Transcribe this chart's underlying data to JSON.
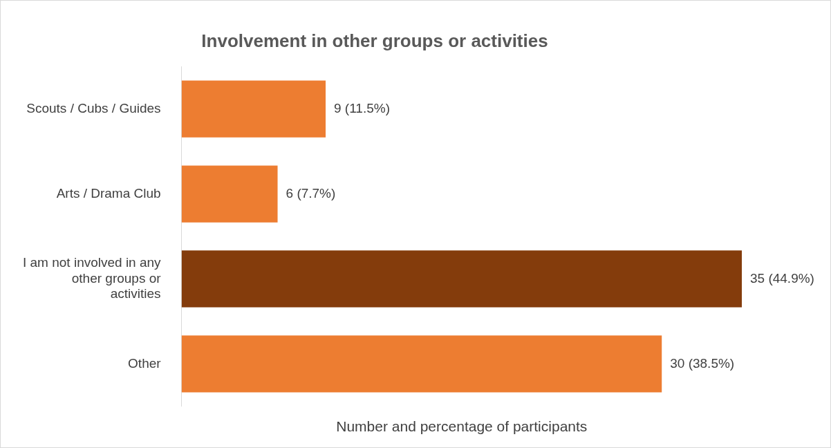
{
  "chart_data": {
    "type": "bar",
    "orientation": "horizontal",
    "title": "Involvement in other groups or activities",
    "xlabel": "Number and percentage of participants",
    "categories": [
      "Scouts / Cubs / Guides",
      "Arts / Drama Club",
      "I am not involved in any other groups or activities",
      "Other"
    ],
    "values": [
      9,
      6,
      35,
      30
    ],
    "colors": [
      "#ed7d31",
      "#ed7d31",
      "#843c0c",
      "#ed7d31"
    ],
    "value_labels": [
      "9 (11.5%)",
      "6 (7.7%)",
      "35 (44.9%)",
      "30 (38.5%)"
    ],
    "grid": false,
    "legend": false
  }
}
